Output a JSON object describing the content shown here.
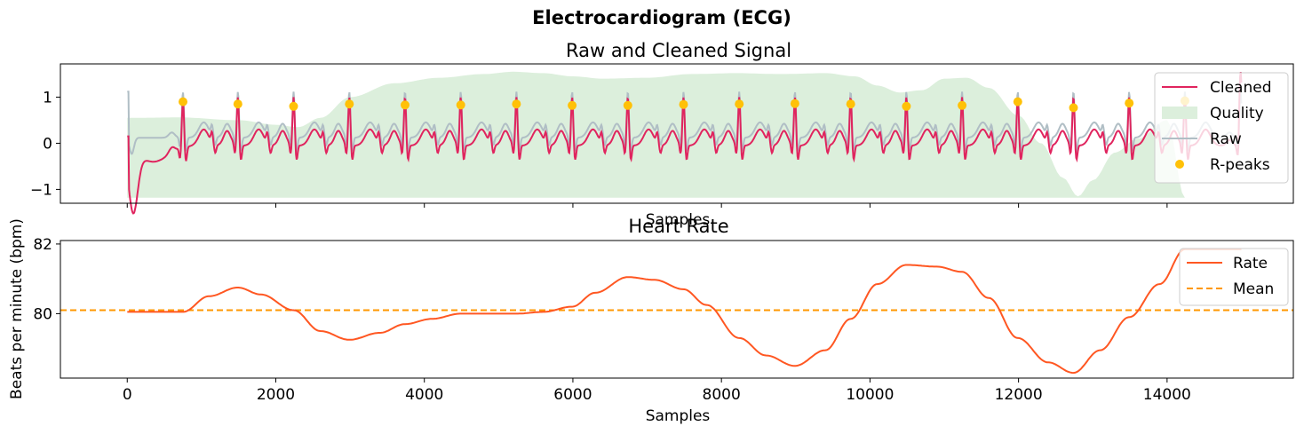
{
  "figure": {
    "title": "Electrocardiogram (ECG)"
  },
  "colors": {
    "cleaned": "#E0245E",
    "raw": "#B0BEC5",
    "quality": "#DCEFDC",
    "rpeaks": "#FFC107",
    "rate": "#FF5722",
    "mean": "#FF9800"
  },
  "chart_data": [
    {
      "type": "line",
      "title": "Raw and Cleaned Signal",
      "xlabel": "Samples",
      "ylabel": "",
      "xlim": [
        -900,
        15700
      ],
      "ylim": [
        -1.3,
        1.72
      ],
      "yticks": [
        -1,
        0,
        1
      ],
      "ytick_labels": [
        "−1",
        "0",
        "1"
      ],
      "xticks": [
        0,
        2000,
        4000,
        6000,
        8000,
        10000,
        12000,
        14000
      ],
      "xtick_labels_visible": false,
      "grid": false,
      "legend_position": "top-right",
      "legend": [
        "Cleaned",
        "Quality",
        "Raw",
        "R-peaks"
      ],
      "series": [
        {
          "name": "Cleaned",
          "kind": "line"
        },
        {
          "name": "Quality",
          "kind": "area"
        },
        {
          "name": "Raw",
          "kind": "line"
        },
        {
          "name": "R-peaks",
          "kind": "scatter"
        }
      ],
      "quality": {
        "baseline": -1.18,
        "x": [
          0,
          700,
          1500,
          2000,
          2300,
          2600,
          3000,
          3600,
          4200,
          4800,
          5200,
          5600,
          6000,
          6400,
          7000,
          7600,
          8200,
          8800,
          9400,
          9800,
          10100,
          10400,
          10700,
          11000,
          11300,
          11600,
          12000,
          12300,
          12600,
          12800,
          13000,
          13300,
          13600,
          14000,
          14240
        ],
        "y": [
          0.55,
          0.56,
          0.5,
          0.4,
          0.35,
          0.55,
          1.0,
          1.3,
          1.42,
          1.5,
          1.55,
          1.52,
          1.45,
          1.4,
          1.42,
          1.5,
          1.52,
          1.5,
          1.52,
          1.45,
          1.25,
          1.1,
          1.15,
          1.4,
          1.42,
          1.2,
          0.6,
          0.0,
          -0.75,
          -1.15,
          -0.8,
          -0.2,
          0.1,
          0.5,
          -1.18
        ]
      },
      "r_peaks": {
        "x": [
          750,
          1490,
          2240,
          2990,
          3740,
          4490,
          5240,
          5990,
          6740,
          7490,
          8240,
          8990,
          9740,
          10490,
          11240,
          11990,
          12740,
          13490,
          14240
        ],
        "y": [
          0.9,
          0.85,
          0.8,
          0.85,
          0.83,
          0.83,
          0.85,
          0.82,
          0.82,
          0.84,
          0.85,
          0.86,
          0.85,
          0.8,
          0.82,
          0.9,
          0.77,
          0.87,
          0.92
        ]
      },
      "signal": {
        "x_range": [
          0,
          15000
        ],
        "cleaned_start": 0.15,
        "cleaned_min": -1.18,
        "cleaned_end_peak": 1.58,
        "raw_start": 1.12
      }
    },
    {
      "type": "line",
      "title": "Heart Rate",
      "xlabel": "Samples",
      "ylabel": "Beats per minute (bpm)",
      "xlim": [
        -900,
        15700
      ],
      "ylim": [
        78.15,
        82.1
      ],
      "yticks": [
        80,
        82
      ],
      "xticks": [
        0,
        2000,
        4000,
        6000,
        8000,
        10000,
        12000,
        14000
      ],
      "grid": false,
      "legend_position": "top-right",
      "legend": [
        "Rate",
        "Mean"
      ],
      "series": [
        {
          "name": "Rate",
          "x": [
            0,
            750,
            1100,
            1490,
            1800,
            2240,
            2600,
            2990,
            3400,
            3740,
            4100,
            4490,
            5240,
            5600,
            5990,
            6300,
            6740,
            7100,
            7490,
            7800,
            8240,
            8600,
            8990,
            9400,
            9740,
            10100,
            10490,
            10900,
            11240,
            11600,
            11990,
            12400,
            12740,
            13100,
            13490,
            13900,
            14240,
            15000
          ],
          "y": [
            80.05,
            80.05,
            80.5,
            80.75,
            80.55,
            80.1,
            79.5,
            79.25,
            79.45,
            79.7,
            79.85,
            80.0,
            80.0,
            80.05,
            80.2,
            80.6,
            81.05,
            80.97,
            80.7,
            80.25,
            79.3,
            78.8,
            78.5,
            78.95,
            79.85,
            80.85,
            81.4,
            81.35,
            81.2,
            80.45,
            79.3,
            78.6,
            78.3,
            78.95,
            79.9,
            80.85,
            81.85,
            81.85
          ]
        },
        {
          "name": "Mean",
          "value": 80.1
        }
      ]
    }
  ]
}
